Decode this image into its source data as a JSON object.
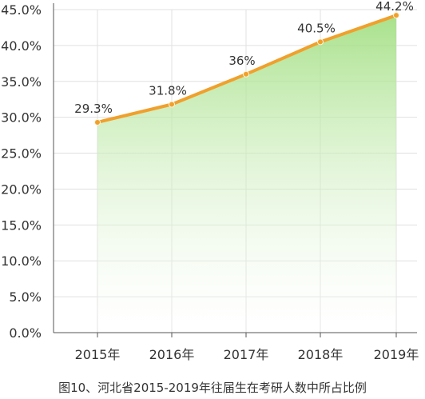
{
  "chart_data": {
    "type": "area",
    "title": "",
    "xlabel": "",
    "ylabel": "",
    "categories": [
      "2015年",
      "2016年",
      "2017年",
      "2018年",
      "2019年"
    ],
    "series": [
      {
        "values": [
          29.3,
          31.8,
          36.0,
          40.5,
          44.2
        ]
      }
    ],
    "data_labels": [
      "29.3%",
      "31.8%",
      "36%",
      "40.5%",
      "44.2%"
    ],
    "ylim": [
      0,
      45
    ],
    "yticks": [
      0,
      5,
      10,
      15,
      20,
      25,
      30,
      35,
      40,
      45
    ],
    "ytick_labels": [
      "0.0%",
      "5.0%",
      "10.0%",
      "15.0%",
      "20.0%",
      "25.0%",
      "30.0%",
      "35.0%",
      "40.0%",
      "45.0%"
    ],
    "grid": true,
    "colors": {
      "line": "#F0A02C",
      "fill_top": "#9FDE7E",
      "fill_bottom": "#FFFFFF",
      "grid": "#E0E0E0",
      "axis": "#555555"
    }
  },
  "caption": "图10、河北省2015-2019年往届生在考研人数中所占比例"
}
